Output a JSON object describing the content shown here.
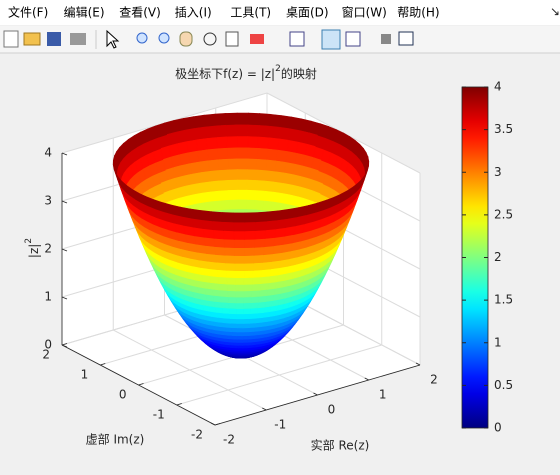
{
  "menu": [
    "文件(F)",
    "编辑(E)",
    "查看(V)",
    "插入(I)",
    "工具(T)",
    "桌面(D)",
    "窗口(W)",
    "帮助(H)"
  ],
  "chart_data": {
    "type": "surface",
    "title": [
      "极坐标下f(z) = |z|",
      "2",
      "的映射"
    ],
    "xlabel": "实部 Re(z)",
    "ylabel": "虚部 Im(z)",
    "zlabel": [
      "|z|",
      "2"
    ],
    "xlim": [
      -2,
      2
    ],
    "xticks": [
      -2,
      -1,
      0,
      1,
      2
    ],
    "ylim": [
      -2,
      2
    ],
    "yticks": [
      -2,
      -1,
      0,
      1,
      2
    ],
    "zlim": [
      0,
      4
    ],
    "zticks": [
      0,
      1,
      2,
      3,
      4
    ],
    "colormap": "jet",
    "grid": true,
    "colorbar": {
      "limits": [
        0,
        4
      ],
      "ticks": [
        0,
        0.5,
        1,
        1.5,
        2,
        2.5,
        3,
        3.5,
        4
      ]
    }
  }
}
